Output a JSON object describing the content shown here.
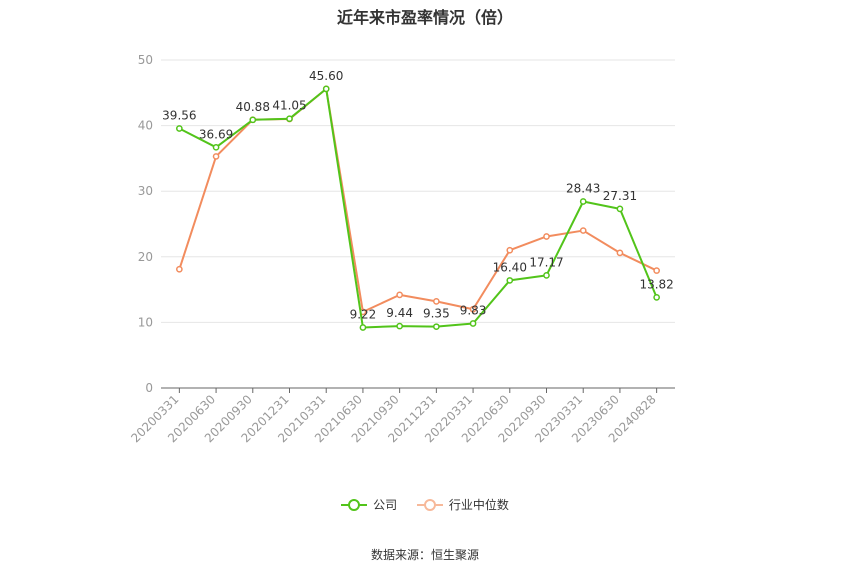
{
  "chart_data": {
    "type": "line",
    "title": "近年来市盈率情况（倍）",
    "categories": [
      "20200331",
      "20200630",
      "20200930",
      "20201231",
      "20210331",
      "20210630",
      "20210930",
      "20211231",
      "20220331",
      "20220630",
      "20220930",
      "20230331",
      "20230630",
      "20240828"
    ],
    "ylim": [
      0,
      50
    ],
    "yticks": [
      0,
      10,
      20,
      30,
      40,
      50
    ],
    "grid": true,
    "legend_position": "bottom",
    "series": [
      {
        "name": "公司",
        "color": "#52c41a",
        "values": [
          39.56,
          36.69,
          40.88,
          41.05,
          45.6,
          9.22,
          9.44,
          9.35,
          9.83,
          16.4,
          17.17,
          28.43,
          27.31,
          13.82
        ],
        "labels": [
          "39.56",
          "36.69",
          "40.88",
          "41.05",
          "45.60",
          "9.22",
          "9.44",
          "9.35",
          "9.83",
          "16.40",
          "17.17",
          "28.43",
          "27.31",
          "13.82"
        ]
      },
      {
        "name": "行业中位数",
        "color": "#f28c5e",
        "values": [
          18.1,
          35.3,
          40.9,
          41.0,
          45.6,
          11.6,
          14.2,
          13.2,
          12.0,
          21.0,
          23.1,
          24.0,
          20.6,
          17.9
        ]
      }
    ]
  },
  "footer": {
    "source": "数据来源：恒生聚源"
  }
}
